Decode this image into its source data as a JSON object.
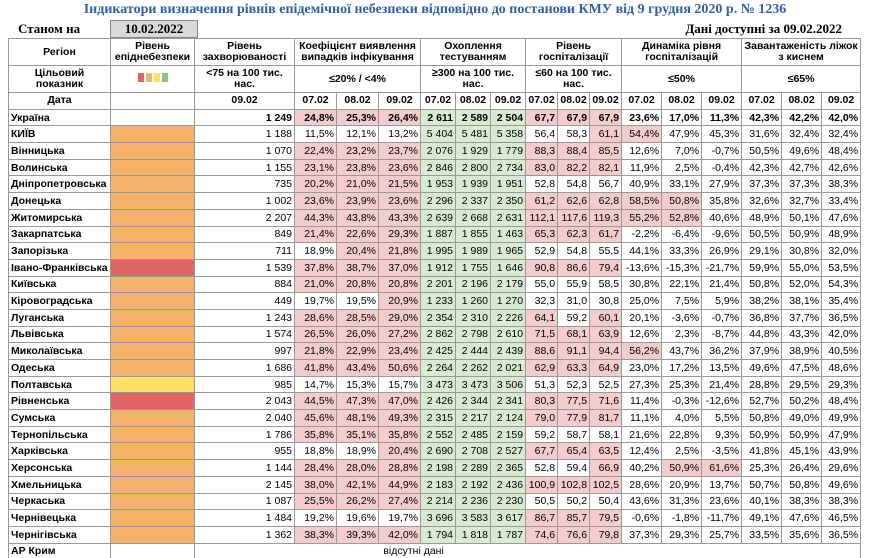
{
  "header": {
    "title": "Індикатори визначення рівнів епідемічної небезпеки відповідно до постанови КМУ від 9 грудня 2020 р. № 1236",
    "as_of_label": "Станом на",
    "as_of_date": "10.02.2022",
    "available": "Дані доступні за 09.02.2022"
  },
  "table": {
    "columns": [
      "Регіон",
      "Рівень епіднебезпеки",
      "Рівень захворюваності",
      "Коефіцієнт виявлення випадків інфікування",
      "Охоплення тестуванням",
      "Рівень госпіталізації",
      "Динаміка рівня госпіталізацій",
      "Завантаженість ліжок з киснем"
    ],
    "target_label": "Цільовий показник",
    "targets": [
      "<75 на 100 тис. нас.",
      "≤20% / <4%",
      "≥300 на 100 тис. нас.",
      "≤60 на 100 тис. нас.",
      "≤50%",
      "≤65%"
    ],
    "date_label": "Дата",
    "incidence_date": "09.02",
    "dates": [
      "07.02",
      "08.02",
      "09.02"
    ],
    "rows": [
      {
        "region": "Україна",
        "color": null,
        "cells": [
          "1 249",
          "24,8%",
          "25,3%",
          "26,4%",
          "2 611",
          "2 589",
          "2 504",
          "67,7",
          "67,9",
          "67,9",
          "23,6%",
          "17,0%",
          "11,3%",
          "42,3%",
          "42,2%",
          "42,0%"
        ]
      },
      {
        "region": "КИЇВ",
        "color": "#f6b26b",
        "cells": [
          "1 188",
          "11,5%",
          "12,1%",
          "13,2%",
          "5 404",
          "5 481",
          "5 358",
          "56,4",
          "58,3",
          "61,1",
          "54,4%",
          "47,9%",
          "45,3%",
          "31,6%",
          "32,4%",
          "32,4%"
        ]
      },
      {
        "region": "Вінницька",
        "color": "#f6b26b",
        "cells": [
          "1 070",
          "22,4%",
          "23,2%",
          "23,7%",
          "2 076",
          "1 929",
          "1 779",
          "88,3",
          "88,4",
          "85,5",
          "12,6%",
          "7,0%",
          "-0,7%",
          "50,5%",
          "49,6%",
          "48,4%"
        ]
      },
      {
        "region": "Волинська",
        "color": "#f6b26b",
        "cells": [
          "1 155",
          "23,1%",
          "23,8%",
          "23,6%",
          "2 846",
          "2 800",
          "2 734",
          "83,0",
          "82,2",
          "82,1",
          "11,9%",
          "2,5%",
          "-0,4%",
          "42,3%",
          "42,7%",
          "42,6%"
        ]
      },
      {
        "region": "Дніпропетровська",
        "color": "#f6b26b",
        "cells": [
          "735",
          "20,2%",
          "21,0%",
          "21,5%",
          "1 953",
          "1 939",
          "1 951",
          "52,8",
          "54,8",
          "56,7",
          "40,9%",
          "33,1%",
          "27,9%",
          "37,3%",
          "37,3%",
          "38,3%"
        ]
      },
      {
        "region": "Донецька",
        "color": "#f6b26b",
        "cells": [
          "1 002",
          "23,6%",
          "23,9%",
          "23,6%",
          "2 296",
          "2 337",
          "2 350",
          "61,2",
          "62,6",
          "62,8",
          "58,5%",
          "50,8%",
          "35,8%",
          "32,6%",
          "32,7%",
          "33,4%"
        ]
      },
      {
        "region": "Житомирська",
        "color": "#f6b26b",
        "cells": [
          "2 207",
          "44,3%",
          "43,8%",
          "43,3%",
          "2 639",
          "2 668",
          "2 631",
          "112,1",
          "117,6",
          "119,3",
          "55,2%",
          "52,8%",
          "40,6%",
          "48,9%",
          "50,1%",
          "47,6%"
        ]
      },
      {
        "region": "Закарпатська",
        "color": "#f6b26b",
        "cells": [
          "849",
          "21,4%",
          "22,6%",
          "29,3%",
          "1 887",
          "1 855",
          "1 463",
          "65,3",
          "62,3",
          "61,7",
          "-2,2%",
          "-6,4%",
          "-9,6%",
          "50,5%",
          "50,9%",
          "48,9%"
        ]
      },
      {
        "region": "Запорізька",
        "color": "#f6b26b",
        "cells": [
          "711",
          "18,9%",
          "20,4%",
          "21,8%",
          "1 995",
          "1 989",
          "1 965",
          "52,9",
          "54,8",
          "55,5",
          "44,1%",
          "33,3%",
          "26,9%",
          "29,1%",
          "30,8%",
          "32,0%"
        ]
      },
      {
        "region": "Івано-Франківська",
        "color": "#e06666",
        "cells": [
          "1 539",
          "37,8%",
          "38,7%",
          "37,0%",
          "1 912",
          "1 755",
          "1 646",
          "90,8",
          "86,6",
          "79,4",
          "-13,6%",
          "-15,3%",
          "-21,7%",
          "59,9%",
          "55,0%",
          "53,5%"
        ]
      },
      {
        "region": "Київська",
        "color": "#f6b26b",
        "cells": [
          "884",
          "21,0%",
          "20,8%",
          "20,8%",
          "2 201",
          "2 196",
          "2 179",
          "55,0",
          "55,9",
          "58,5",
          "30,8%",
          "22,1%",
          "21,4%",
          "50,8%",
          "52,0%",
          "54,3%"
        ]
      },
      {
        "region": "Кіровоградська",
        "color": "#f6b26b",
        "cells": [
          "449",
          "19,7%",
          "19,5%",
          "20,9%",
          "1 233",
          "1 260",
          "1 270",
          "32,3",
          "31,0",
          "30,8",
          "25,0%",
          "7,5%",
          "5,9%",
          "38,2%",
          "38,1%",
          "35,4%"
        ]
      },
      {
        "region": "Луганська",
        "color": "#f6b26b",
        "cells": [
          "1 243",
          "28,6%",
          "28,5%",
          "29,0%",
          "2 354",
          "2 310",
          "2 226",
          "64,1",
          "59,2",
          "60,1",
          "20,1%",
          "-3,6%",
          "-0,7%",
          "36,8%",
          "37,7%",
          "36,5%"
        ]
      },
      {
        "region": "Львівська",
        "color": "#f6b26b",
        "cells": [
          "1 574",
          "26,5%",
          "26,0%",
          "27,2%",
          "2 862",
          "2 798",
          "2 610",
          "71,5",
          "68,1",
          "63,9",
          "12,6%",
          "2,3%",
          "-8,7%",
          "44,8%",
          "43,3%",
          "42,0%"
        ]
      },
      {
        "region": "Миколаївська",
        "color": "#f6b26b",
        "cells": [
          "997",
          "21,8%",
          "22,9%",
          "23,4%",
          "2 425",
          "2 444",
          "2 439",
          "88,6",
          "91,1",
          "94,4",
          "56,2%",
          "43,7%",
          "36,2%",
          "37,9%",
          "38,9%",
          "40,5%"
        ]
      },
      {
        "region": "Одеська",
        "color": "#f6b26b",
        "cells": [
          "1 686",
          "41,8%",
          "43,4%",
          "50,6%",
          "2 264",
          "2 262",
          "2 021",
          "62,9",
          "63,3",
          "64,9",
          "23,0%",
          "17,2%",
          "13,5%",
          "49,6%",
          "47,5%",
          "48,6%"
        ]
      },
      {
        "region": "Полтавська",
        "color": "#ffe066",
        "cells": [
          "985",
          "14,7%",
          "15,3%",
          "15,7%",
          "3 473",
          "3 473",
          "3 506",
          "51,3",
          "52,3",
          "52,5",
          "27,3%",
          "25,3%",
          "21,4%",
          "28,8%",
          "29,5%",
          "29,3%"
        ]
      },
      {
        "region": "Рівненська",
        "color": "#e06666",
        "cells": [
          "2 043",
          "44,5%",
          "47,3%",
          "47,0%",
          "2 426",
          "2 344",
          "2 341",
          "80,3",
          "77,5",
          "71,6",
          "11,4%",
          "-0,3%",
          "-12,6%",
          "52,7%",
          "50,2%",
          "48,4%"
        ]
      },
      {
        "region": "Сумська",
        "color": "#f6b26b",
        "cells": [
          "2 040",
          "45,6%",
          "48,1%",
          "49,3%",
          "2 315",
          "2 217",
          "2 124",
          "79,0",
          "77,9",
          "81,7",
          "11,1%",
          "4,0%",
          "5,5%",
          "50,8%",
          "49,0%",
          "49,9%"
        ]
      },
      {
        "region": "Тернопільська",
        "color": "#f6b26b",
        "cells": [
          "1 786",
          "35,8%",
          "35,1%",
          "35,8%",
          "2 552",
          "2 485",
          "2 159",
          "59,2",
          "58,7",
          "58,1",
          "21,6%",
          "22,8%",
          "9,3%",
          "50,9%",
          "50,9%",
          "47,9%"
        ]
      },
      {
        "region": "Харківська",
        "color": "#f6b26b",
        "cells": [
          "955",
          "18,8%",
          "18,9%",
          "20,4%",
          "2 690",
          "2 708",
          "2 527",
          "67,7",
          "65,4",
          "63,5",
          "12,4%",
          "2,5%",
          "-3,5%",
          "41,8%",
          "45,1%",
          "43,9%"
        ]
      },
      {
        "region": "Херсонська",
        "color": "#f6b26b",
        "cells": [
          "1 144",
          "28,4%",
          "28,0%",
          "28,8%",
          "2 198",
          "2 289",
          "2 365",
          "52,8",
          "59,4",
          "66,9",
          "40,2%",
          "50,9%",
          "61,6%",
          "25,3%",
          "26,4%",
          "29,6%"
        ]
      },
      {
        "region": "Хмельницька",
        "color": "#f6b26b",
        "cells": [
          "2 145",
          "38,0%",
          "42,1%",
          "44,9%",
          "2 183",
          "2 192",
          "2 436",
          "100,9",
          "102,8",
          "102,5",
          "28,6%",
          "20,9%",
          "13,7%",
          "50,7%",
          "50,8%",
          "49,6%"
        ]
      },
      {
        "region": "Черкаська",
        "color": "#f6b26b",
        "cells": [
          "1 087",
          "25,5%",
          "26,2%",
          "27,4%",
          "2 214",
          "2 236",
          "2 230",
          "50,5",
          "50,2",
          "50,4",
          "43,6%",
          "31,3%",
          "23,6%",
          "40,1%",
          "38,3%",
          "38,3%"
        ]
      },
      {
        "region": "Чернівецька",
        "color": "#f6b26b",
        "cells": [
          "1 484",
          "19,2%",
          "19,6%",
          "19,7%",
          "3 696",
          "3 583",
          "3 617",
          "86,7",
          "85,7",
          "79,5",
          "-0,6%",
          "-1,8%",
          "-11,7%",
          "49,1%",
          "47,6%",
          "46,5%"
        ]
      },
      {
        "region": "Чернігівська",
        "color": "#f6b26b",
        "cells": [
          "1 362",
          "38,3%",
          "39,3%",
          "42,0%",
          "1 794",
          "1 818",
          "1 787",
          "74,6",
          "76,6",
          "79,8",
          "37,3%",
          "29,3%",
          "25,7%",
          "33,5%",
          "35,6%",
          "36,5%"
        ]
      }
    ],
    "missing": {
      "region": "АР Крим",
      "note": "відсутні дані"
    }
  }
}
